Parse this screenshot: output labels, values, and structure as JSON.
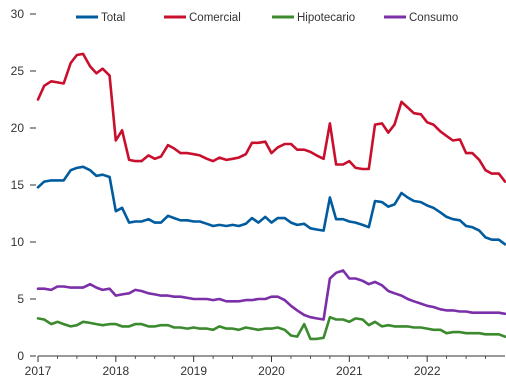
{
  "chart_data": {
    "type": "line",
    "title": "",
    "xlabel": "",
    "ylabel": "",
    "ylim": [
      0,
      30
    ],
    "y_ticks": [
      0,
      5,
      10,
      15,
      20,
      25,
      30
    ],
    "xlim": [
      2017.0,
      2023.0
    ],
    "x_ticks": [
      2017,
      2018,
      2019,
      2020,
      2021,
      2022
    ],
    "x_tick_labels": [
      "2017",
      "2018",
      "2019",
      "2020",
      "2021",
      "2022"
    ],
    "grid": false,
    "legend_position": "top",
    "x": [
      2017.0,
      2017.08,
      2017.17,
      2017.25,
      2017.33,
      2017.42,
      2017.5,
      2017.58,
      2017.67,
      2017.75,
      2017.83,
      2017.92,
      2018.0,
      2018.08,
      2018.17,
      2018.25,
      2018.33,
      2018.42,
      2018.5,
      2018.58,
      2018.67,
      2018.75,
      2018.83,
      2018.92,
      2019.0,
      2019.08,
      2019.17,
      2019.25,
      2019.33,
      2019.42,
      2019.5,
      2019.58,
      2019.67,
      2019.75,
      2019.83,
      2019.92,
      2020.0,
      2020.08,
      2020.17,
      2020.25,
      2020.33,
      2020.42,
      2020.5,
      2020.58,
      2020.67,
      2020.75,
      2020.83,
      2020.92,
      2021.0,
      2021.08,
      2021.17,
      2021.25,
      2021.33,
      2021.42,
      2021.5,
      2021.58,
      2021.67,
      2021.75,
      2021.83,
      2021.92,
      2022.0,
      2022.08,
      2022.17,
      2022.25,
      2022.33,
      2022.42,
      2022.5,
      2022.58,
      2022.67,
      2022.75,
      2022.83,
      2022.92,
      2023.0
    ],
    "series": [
      {
        "name": "Total",
        "color": "#005b9f",
        "values": [
          14.8,
          15.3,
          15.4,
          15.4,
          15.4,
          16.3,
          16.5,
          16.6,
          16.3,
          15.8,
          15.9,
          15.7,
          12.7,
          13.0,
          11.7,
          11.8,
          11.8,
          12.0,
          11.7,
          11.7,
          12.3,
          12.1,
          11.9,
          11.9,
          11.8,
          11.8,
          11.6,
          11.4,
          11.5,
          11.4,
          11.5,
          11.4,
          11.6,
          12.1,
          11.7,
          12.2,
          11.7,
          12.1,
          12.1,
          11.7,
          11.5,
          11.6,
          11.2,
          11.1,
          11.0,
          13.9,
          12.0,
          12.0,
          11.8,
          11.7,
          11.5,
          11.3,
          13.6,
          13.5,
          13.1,
          13.3,
          14.3,
          13.9,
          13.6,
          13.5,
          13.2,
          13.0,
          12.6,
          12.2,
          12.0,
          11.9,
          11.4,
          11.3,
          11.0,
          10.4,
          10.2,
          10.2,
          9.8
        ]
      },
      {
        "name": "Comercial",
        "color": "#c8102e",
        "values": [
          22.5,
          23.7,
          24.1,
          24.0,
          23.9,
          25.7,
          26.4,
          26.5,
          25.4,
          24.8,
          25.2,
          24.6,
          18.9,
          19.8,
          17.2,
          17.1,
          17.1,
          17.6,
          17.3,
          17.5,
          18.5,
          18.2,
          17.8,
          17.8,
          17.7,
          17.6,
          17.3,
          17.1,
          17.4,
          17.2,
          17.3,
          17.4,
          17.7,
          18.7,
          18.7,
          18.8,
          17.8,
          18.3,
          18.6,
          18.6,
          18.1,
          18.1,
          17.9,
          17.6,
          17.3,
          20.4,
          16.8,
          16.8,
          17.1,
          16.5,
          16.4,
          16.4,
          20.3,
          20.4,
          19.6,
          20.3,
          22.3,
          21.8,
          21.3,
          21.2,
          20.5,
          20.3,
          19.7,
          19.3,
          18.9,
          19.0,
          17.8,
          17.8,
          17.2,
          16.3,
          16.0,
          16.0,
          15.3
        ]
      },
      {
        "name": "Hipotecario",
        "color": "#3c8a2e",
        "values": [
          3.3,
          3.2,
          2.8,
          3.0,
          2.8,
          2.6,
          2.7,
          3.0,
          2.9,
          2.8,
          2.7,
          2.8,
          2.8,
          2.6,
          2.6,
          2.8,
          2.8,
          2.6,
          2.6,
          2.7,
          2.7,
          2.5,
          2.5,
          2.4,
          2.5,
          2.4,
          2.4,
          2.3,
          2.6,
          2.4,
          2.4,
          2.3,
          2.5,
          2.4,
          2.3,
          2.4,
          2.4,
          2.5,
          2.3,
          1.8,
          1.7,
          2.8,
          1.5,
          1.5,
          1.6,
          3.4,
          3.2,
          3.2,
          3.0,
          3.3,
          3.2,
          2.7,
          3.0,
          2.6,
          2.7,
          2.6,
          2.6,
          2.6,
          2.5,
          2.5,
          2.4,
          2.3,
          2.3,
          2.0,
          2.1,
          2.1,
          2.0,
          2.0,
          2.0,
          1.9,
          1.9,
          1.9,
          1.7
        ]
      },
      {
        "name": "Consumo",
        "color": "#7b2fa8",
        "values": [
          5.9,
          5.9,
          5.8,
          6.1,
          6.1,
          6.0,
          6.0,
          6.0,
          6.3,
          6.0,
          5.8,
          5.9,
          5.3,
          5.4,
          5.5,
          5.8,
          5.7,
          5.5,
          5.4,
          5.3,
          5.3,
          5.2,
          5.2,
          5.1,
          5.0,
          5.0,
          5.0,
          4.9,
          5.0,
          4.8,
          4.8,
          4.8,
          4.9,
          4.9,
          5.0,
          5.0,
          5.2,
          5.2,
          4.9,
          4.4,
          4.0,
          3.6,
          3.4,
          3.3,
          3.2,
          6.8,
          7.3,
          7.5,
          6.8,
          6.8,
          6.6,
          6.3,
          6.5,
          6.2,
          5.7,
          5.5,
          5.3,
          5.0,
          4.8,
          4.6,
          4.4,
          4.3,
          4.1,
          4.0,
          4.0,
          3.9,
          3.9,
          3.8,
          3.8,
          3.8,
          3.8,
          3.8,
          3.7
        ]
      }
    ]
  }
}
